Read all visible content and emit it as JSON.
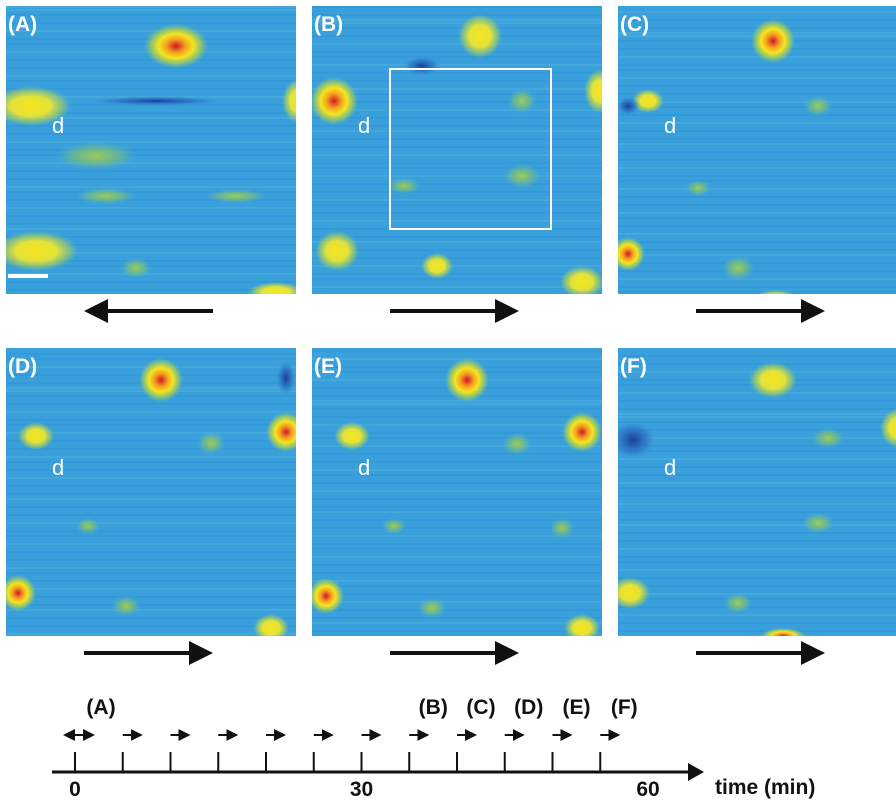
{
  "panels": [
    {
      "label": "(A)",
      "marker": "d"
    },
    {
      "label": "(B)",
      "marker": "d"
    },
    {
      "label": "(C)",
      "marker": "d"
    },
    {
      "label": "(D)",
      "marker": "d"
    },
    {
      "label": "(E)",
      "marker": "d"
    },
    {
      "label": "(F)",
      "marker": "d"
    }
  ],
  "timeline": {
    "events": [
      "(A)",
      "(B)",
      "(C)",
      "(D)",
      "(E)",
      "(F)"
    ],
    "ticks": [
      "0",
      "30",
      "60"
    ],
    "axis_label": "time (min)"
  }
}
